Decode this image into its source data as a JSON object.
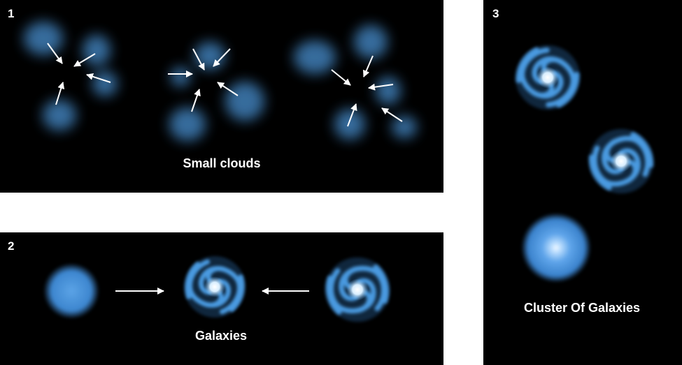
{
  "panels": [
    {
      "number": "1",
      "caption": "Small clouds"
    },
    {
      "number": "2",
      "caption": "Galaxies"
    },
    {
      "number": "3",
      "caption": "Cluster Of Galaxies"
    }
  ],
  "colors": {
    "background": "#000000",
    "cloud": "#3f7fb8",
    "galaxy": "#4a9ae0",
    "galaxy_core": "#eaf6ff",
    "arrow": "#ffffff",
    "gap": "#ffffff"
  }
}
